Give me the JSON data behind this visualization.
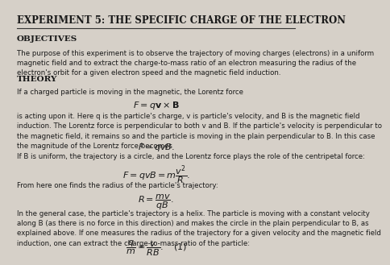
{
  "bg_color": "#d6d0c8",
  "title": "EXPERIMENT 5: THE SPECIFIC CHARGE OF THE ELECTRON",
  "section1_heading": "OBJECTIVES",
  "section1_body": "The purpose of this experiment is to observe the trajectory of moving charges (electrons) in a uniform\nmagnetic field and to extract the charge-to-mass ratio of an electron measuring the radius of the\nelectron's orbit for a given electron speed and the magnetic field induction.",
  "section2_heading": "THEORY",
  "section2_body1": "If a charged particle is moving in the magnetic, the Lorentz force",
  "section2_body2": "is acting upon it. Here q is the particle's charge, v is particle's velocity, and B is the magnetic field\ninduction. The Lorentz force is perpendicular to both v and B. If the particle's velocity is perpendicular to\nthe magnetic field, it remains so and the particle is moving in the plain perpendicular to B. In this case\nthe magnitude of the Lorentz force becomes",
  "section2_body3": "If B is uniform, the trajectory is a circle, and the Lorentz force plays the role of the centripetal force:",
  "section2_body4": "From here one finds the radius of the particle's trajectory:",
  "section2_body5": "In the general case, the particle's trajectory is a helix. The particle is moving with a constant velocity\nalong B (as there is no force in this direction) and makes the circle in the plain perpendicular to B, as\nexplained above. If one measures the radius of the trajectory for a given velocity and the magnetic field\ninduction, one can extract the charge-to-mass ratio of the particle:",
  "text_color": "#1a1a1a",
  "heading_color": "#1a1a1a",
  "line_color": "#333333"
}
